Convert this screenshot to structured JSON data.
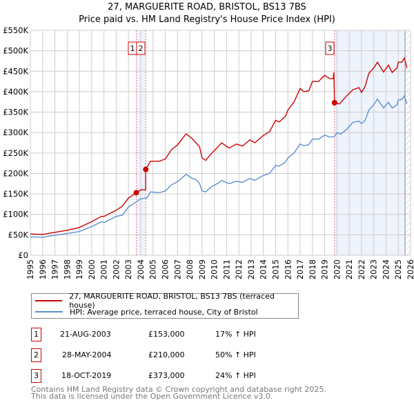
{
  "title": [
    "27, MARGUERITE ROAD, BRISTOL, BS13 7BS",
    "Price paid vs. HM Land Registry's House Price Index (HPI)"
  ],
  "colors": {
    "property": "#cc0000",
    "hpi": "#5b8fd4",
    "shade": "#eef3fc"
  },
  "chart_data": {
    "type": "line",
    "xlim": [
      1995,
      2026
    ],
    "ylim": [
      0,
      550000
    ],
    "yticks": [
      0,
      50000,
      100000,
      150000,
      200000,
      250000,
      300000,
      350000,
      400000,
      450000,
      500000,
      550000
    ],
    "ytick_labels": [
      "£0",
      "£50K",
      "£100K",
      "£150K",
      "£200K",
      "£250K",
      "£300K",
      "£350K",
      "£400K",
      "£450K",
      "£500K",
      "£550K"
    ],
    "xticks": [
      1995,
      1996,
      1997,
      1998,
      1999,
      2000,
      2001,
      2002,
      2003,
      2004,
      2005,
      2006,
      2007,
      2008,
      2009,
      2010,
      2011,
      2012,
      2013,
      2014,
      2015,
      2016,
      2017,
      2018,
      2019,
      2020,
      2021,
      2022,
      2023,
      2024,
      2025,
      2026
    ],
    "grid": true,
    "series": [
      {
        "name": "27, MARGUERITE ROAD, BRISTOL, BS13 7BS (terraced house)",
        "color": "#cc0000",
        "points": [
          [
            1995,
            52
          ],
          [
            1996,
            51
          ],
          [
            1997,
            56
          ],
          [
            1998,
            61
          ],
          [
            1999,
            68
          ],
          [
            2000,
            82
          ],
          [
            2000.8,
            95
          ],
          [
            2001,
            95
          ],
          [
            2002,
            110
          ],
          [
            2002.5,
            120
          ],
          [
            2003,
            140
          ],
          [
            2003.64,
            153
          ],
          [
            2004,
            160
          ],
          [
            2004.4,
            160
          ],
          [
            2004.41,
            210
          ],
          [
            2004.8,
            230
          ],
          [
            2005.5,
            230
          ],
          [
            2006,
            235
          ],
          [
            2006.5,
            258
          ],
          [
            2007,
            270
          ],
          [
            2007.7,
            297
          ],
          [
            2008.2,
            285
          ],
          [
            2008.5,
            275
          ],
          [
            2008.8,
            265
          ],
          [
            2009,
            238
          ],
          [
            2009.3,
            232
          ],
          [
            2009.8,
            250
          ],
          [
            2010.3,
            265
          ],
          [
            2010.6,
            275
          ],
          [
            2011.2,
            262
          ],
          [
            2011.8,
            272
          ],
          [
            2012.3,
            267
          ],
          [
            2012.9,
            282
          ],
          [
            2013.3,
            275
          ],
          [
            2014,
            293
          ],
          [
            2014.5,
            302
          ],
          [
            2015,
            330
          ],
          [
            2015.3,
            326
          ],
          [
            2015.8,
            340
          ],
          [
            2016,
            355
          ],
          [
            2016.5,
            375
          ],
          [
            2017,
            408
          ],
          [
            2017.3,
            400
          ],
          [
            2017.7,
            402
          ],
          [
            2018,
            425
          ],
          [
            2018.5,
            425
          ],
          [
            2019,
            440
          ],
          [
            2019.4,
            432
          ],
          [
            2019.7,
            432
          ],
          [
            2019.75,
            447
          ],
          [
            2019.8,
            373
          ],
          [
            2020.2,
            370
          ],
          [
            2020.8,
            390
          ],
          [
            2021.3,
            405
          ],
          [
            2021.8,
            410
          ],
          [
            2022,
            398
          ],
          [
            2022.3,
            413
          ],
          [
            2022.6,
            445
          ],
          [
            2023,
            458
          ],
          [
            2023.3,
            472
          ],
          [
            2023.8,
            448
          ],
          [
            2024.2,
            465
          ],
          [
            2024.5,
            447
          ],
          [
            2024.9,
            458
          ],
          [
            2025,
            472
          ],
          [
            2025.3,
            472
          ],
          [
            2025.5,
            482
          ],
          [
            2025.7,
            458
          ]
        ]
      },
      {
        "name": "HPI: Average price, terraced house, City of Bristol",
        "color": "#5b8fd4",
        "points": [
          [
            1995,
            45
          ],
          [
            1996,
            44
          ],
          [
            1997,
            49
          ],
          [
            1998,
            53
          ],
          [
            1999,
            58
          ],
          [
            2000,
            70
          ],
          [
            2000.8,
            82
          ],
          [
            2001,
            80
          ],
          [
            2002,
            95
          ],
          [
            2002.5,
            98
          ],
          [
            2003,
            118
          ],
          [
            2003.6,
            130
          ],
          [
            2004,
            138
          ],
          [
            2004.5,
            140
          ],
          [
            2004.8,
            155
          ],
          [
            2005.5,
            153
          ],
          [
            2006,
            157
          ],
          [
            2006.5,
            172
          ],
          [
            2007,
            180
          ],
          [
            2007.7,
            198
          ],
          [
            2008.2,
            188
          ],
          [
            2008.5,
            185
          ],
          [
            2008.8,
            175
          ],
          [
            2009,
            157
          ],
          [
            2009.3,
            155
          ],
          [
            2009.8,
            168
          ],
          [
            2010.3,
            176
          ],
          [
            2010.6,
            183
          ],
          [
            2011.2,
            175
          ],
          [
            2011.8,
            181
          ],
          [
            2012.3,
            178
          ],
          [
            2012.9,
            188
          ],
          [
            2013.3,
            183
          ],
          [
            2014,
            195
          ],
          [
            2014.5,
            200
          ],
          [
            2015,
            220
          ],
          [
            2015.3,
            218
          ],
          [
            2015.8,
            228
          ],
          [
            2016,
            238
          ],
          [
            2016.5,
            250
          ],
          [
            2017,
            272
          ],
          [
            2017.3,
            268
          ],
          [
            2017.7,
            270
          ],
          [
            2018,
            284
          ],
          [
            2018.5,
            284
          ],
          [
            2019,
            294
          ],
          [
            2019.4,
            289
          ],
          [
            2019.8,
            290
          ],
          [
            2020,
            300
          ],
          [
            2020.3,
            296
          ],
          [
            2020.8,
            308
          ],
          [
            2021.3,
            325
          ],
          [
            2021.8,
            328
          ],
          [
            2022,
            322
          ],
          [
            2022.3,
            330
          ],
          [
            2022.6,
            355
          ],
          [
            2023,
            368
          ],
          [
            2023.3,
            382
          ],
          [
            2023.8,
            360
          ],
          [
            2024.2,
            374
          ],
          [
            2024.5,
            360
          ],
          [
            2024.9,
            368
          ],
          [
            2025,
            380
          ],
          [
            2025.3,
            381
          ],
          [
            2025.5,
            390
          ],
          [
            2025.7,
            370
          ]
        ]
      }
    ],
    "sales": [
      {
        "label": "1",
        "x": 2003.64,
        "y": 153000
      },
      {
        "label": "2",
        "x": 2004.41,
        "y": 210000
      },
      {
        "label": "3",
        "x": 2019.8,
        "y": 373000
      }
    ],
    "legend_position": "bottom"
  },
  "legend": [
    "27, MARGUERITE ROAD, BRISTOL, BS13 7BS (terraced house)",
    "HPI: Average price, terraced house, City of Bristol"
  ],
  "sales_table": [
    {
      "num": "1",
      "date": "21-AUG-2003",
      "price": "£153,000",
      "hpi": "17% ↑ HPI"
    },
    {
      "num": "2",
      "date": "28-MAY-2004",
      "price": "£210,000",
      "hpi": "50% ↑ HPI"
    },
    {
      "num": "3",
      "date": "18-OCT-2019",
      "price": "£373,000",
      "hpi": "24% ↑ HPI"
    }
  ],
  "footer": [
    "Contains HM Land Registry data © Crown copyright and database right 2025.",
    "This data is licensed under the Open Government Licence v3.0."
  ]
}
